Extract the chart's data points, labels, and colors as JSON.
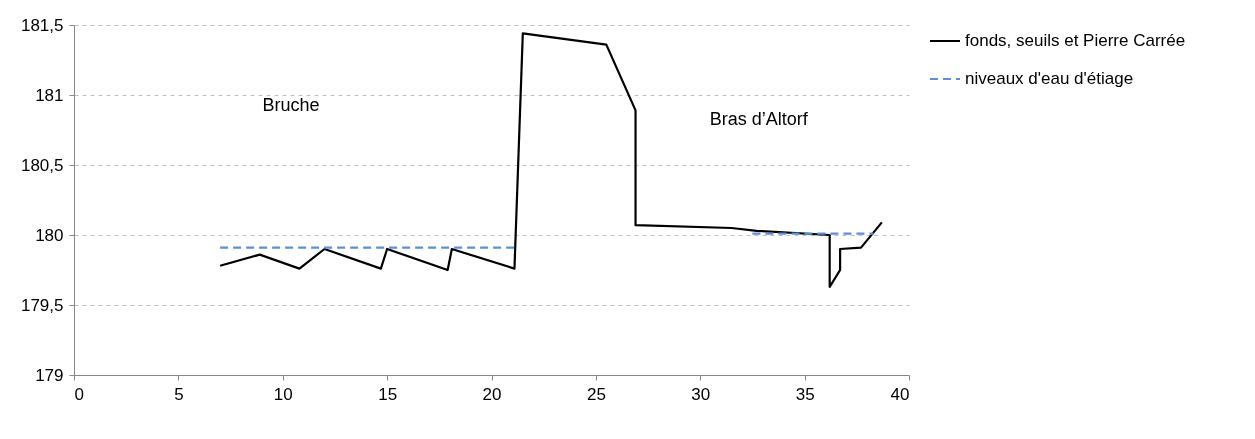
{
  "chart_data": {
    "type": "line",
    "xlim": [
      0,
      40
    ],
    "xticks": [
      0,
      5,
      10,
      15,
      20,
      25,
      30,
      35,
      40
    ],
    "ylim": [
      179,
      181.5
    ],
    "yticks": [
      179,
      {
        "value": 179.5,
        "label": "179,5"
      },
      180,
      {
        "value": 180.5,
        "label": "180,5"
      },
      181,
      {
        "value": 181.5,
        "label": "181,5"
      }
    ],
    "grid": "y",
    "legend": "right",
    "marker": "none",
    "series": [
      {
        "name": "fonds, seuils et Pierre Carrée",
        "color": "#000000",
        "line_style": "solid",
        "x": [
          7.0,
          8.9,
          10.8,
          12.0,
          14.7,
          15.0,
          17.9,
          18.1,
          21.1,
          21.5,
          25.5,
          26.9,
          26.9,
          31.5,
          32.7,
          36.2,
          36.2,
          36.7,
          36.7,
          37.7,
          38.7
        ],
        "values": [
          179.78,
          179.86,
          179.76,
          179.9,
          179.76,
          179.9,
          179.75,
          179.9,
          179.76,
          181.44,
          181.36,
          180.89,
          180.07,
          180.05,
          180.03,
          180.0,
          179.63,
          179.75,
          179.9,
          179.91,
          180.09
        ]
      },
      {
        "name": "niveaux d'eau d'étiage",
        "color": "#5b8fd9",
        "line_style": "dashed",
        "x": [
          7.0,
          21.1,
          26.0,
          32.5,
          38.3
        ],
        "values": [
          179.91,
          179.91,
          null,
          180.01,
          180.01
        ]
      }
    ],
    "annotations": [
      "Bruche",
      "Bras d’Altorf"
    ]
  }
}
